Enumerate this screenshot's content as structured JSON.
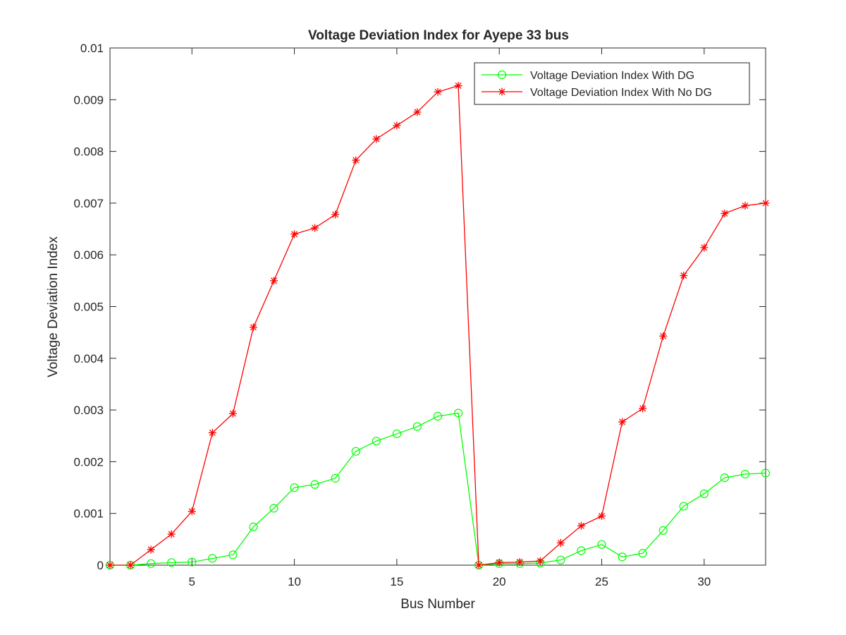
{
  "chart_data": {
    "type": "line",
    "title": "Voltage Deviation Index for Ayepe 33 bus",
    "xlabel": "Bus Number",
    "ylabel": "Voltage Deviation Index",
    "xlim": [
      1,
      33
    ],
    "ylim": [
      0,
      0.01
    ],
    "xticks": [
      5,
      10,
      15,
      20,
      25,
      30
    ],
    "xtick_labels": [
      "5",
      "10",
      "15",
      "20",
      "25",
      "30"
    ],
    "yticks": [
      0,
      0.001,
      0.002,
      0.003,
      0.004,
      0.005,
      0.006,
      0.007,
      0.008,
      0.009,
      0.01
    ],
    "ytick_labels": [
      "0",
      "0.001",
      "0.002",
      "0.003",
      "0.004",
      "0.005",
      "0.006",
      "0.007",
      "0.008",
      "0.009",
      "0.01"
    ],
    "grid": false,
    "legend_position": "top-right",
    "x": [
      1,
      2,
      3,
      4,
      5,
      6,
      7,
      8,
      9,
      10,
      11,
      12,
      13,
      14,
      15,
      16,
      17,
      18,
      19,
      20,
      21,
      22,
      23,
      24,
      25,
      26,
      27,
      28,
      29,
      30,
      31,
      32,
      33
    ],
    "series": [
      {
        "name": "Voltage Deviation Index With DG",
        "color": "#00ff00",
        "marker": "circle",
        "values": [
          0,
          0,
          3e-05,
          5e-05,
          6e-05,
          0.00013,
          0.0002,
          0.00074,
          0.0011,
          0.0015,
          0.00156,
          0.00168,
          0.0022,
          0.0024,
          0.00254,
          0.00268,
          0.00288,
          0.00294,
          0,
          3e-05,
          3e-05,
          4e-05,
          0.0001,
          0.00028,
          0.0004,
          0.00016,
          0.00023,
          0.00067,
          0.00114,
          0.00138,
          0.00169,
          0.00176,
          0.00178
        ]
      },
      {
        "name": "Voltage Deviation Index With No DG",
        "color": "#ff0000",
        "marker": "star",
        "values": [
          0,
          0,
          0.0003,
          0.0006,
          0.00104,
          0.00256,
          0.00293,
          0.0046,
          0.0055,
          0.0064,
          0.00652,
          0.00678,
          0.00783,
          0.00824,
          0.0085,
          0.00876,
          0.00915,
          0.00927,
          0,
          5e-05,
          6e-05,
          8e-05,
          0.00043,
          0.00076,
          0.00095,
          0.00277,
          0.00303,
          0.00443,
          0.0056,
          0.00614,
          0.0068,
          0.00695,
          0.007
        ]
      }
    ]
  }
}
